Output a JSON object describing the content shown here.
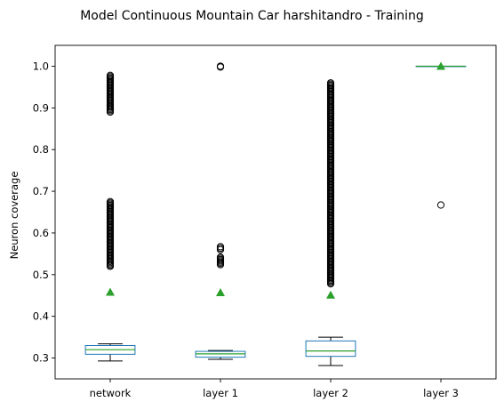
{
  "chart_data": {
    "type": "box",
    "title": "Model Continuous Mountain Car harshitandro - Training",
    "xlabel": "",
    "ylabel": "Neuron coverage",
    "ylim": [
      0.25,
      1.05
    ],
    "yticks": [
      0.3,
      0.4,
      0.5,
      0.6,
      0.7,
      0.8,
      0.9,
      1.0
    ],
    "ytick_labels": [
      "0.3",
      "0.4",
      "0.5",
      "0.6",
      "0.7",
      "0.8",
      "0.9",
      "1.0"
    ],
    "categories": [
      "network",
      "layer 1",
      "layer 2",
      "layer 3"
    ],
    "grid": false,
    "colors": {
      "box": "#1f77b4",
      "median": "#2ca02c",
      "mean": "#2ca02c",
      "whisker": "#000000",
      "outlier": "#000000"
    },
    "boxes": [
      {
        "category": "network",
        "whislo": 0.293,
        "q1": 0.309,
        "med": 0.32,
        "q3": 0.33,
        "whishi": 0.334,
        "mean": 0.458,
        "outlier_ranges": [
          [
            0.52,
            0.675
          ],
          [
            0.89,
            0.978
          ]
        ]
      },
      {
        "category": "layer 1",
        "whislo": 0.297,
        "q1": 0.302,
        "med": 0.31,
        "q3": 0.316,
        "whishi": 0.318,
        "mean": 0.457,
        "outlier_ranges": [
          [
            0.524,
            0.542
          ],
          [
            0.56,
            0.567
          ],
          [
            0.998,
            1.0
          ]
        ]
      },
      {
        "category": "layer 2",
        "whislo": 0.282,
        "q1": 0.304,
        "med": 0.317,
        "q3": 0.341,
        "whishi": 0.35,
        "mean": 0.451,
        "outlier_ranges": [
          [
            0.478,
            0.96
          ]
        ]
      },
      {
        "category": "layer 3",
        "whislo": 1.0,
        "q1": 1.0,
        "med": 1.0,
        "q3": 1.0,
        "whishi": 1.0,
        "mean": 1.0,
        "outliers": [
          0.667
        ]
      }
    ]
  }
}
